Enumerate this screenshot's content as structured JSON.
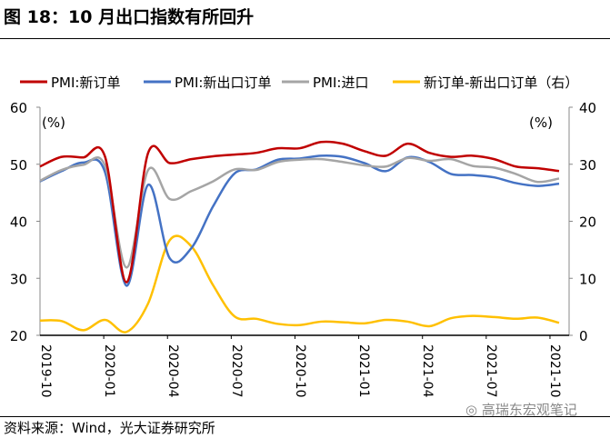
{
  "title": "图 18：10 月出口指数有所回升",
  "source": "资料来源：Wind，光大证券研究所",
  "watermark": "高瑞东宏观笔记",
  "chart_data": {
    "type": "line",
    "categories": [
      "2019-10",
      "2019-11",
      "2019-12",
      "2020-01",
      "2020-02",
      "2020-03",
      "2020-04",
      "2020-05",
      "2020-06",
      "2020-07",
      "2020-08",
      "2020-09",
      "2020-10",
      "2020-11",
      "2020-12",
      "2021-01",
      "2021-02",
      "2021-03",
      "2021-04",
      "2021-05",
      "2021-06",
      "2021-07",
      "2021-08",
      "2021-09",
      "2021-10"
    ],
    "tick_labels": [
      "2019-10",
      "2020-01",
      "2020-04",
      "2020-07",
      "2020-10",
      "2021-01",
      "2021-04",
      "2021-07",
      "2021-10"
    ],
    "left_axis": {
      "label": "(%)",
      "ylim": [
        20,
        60
      ],
      "ticks": [
        20,
        30,
        40,
        50,
        60
      ]
    },
    "right_axis": {
      "label": "(%)",
      "ylim": [
        0,
        40
      ],
      "ticks": [
        0,
        10,
        20,
        30,
        40
      ]
    },
    "grid": false,
    "legend": "top",
    "series": [
      {
        "name": "PMI:新订单",
        "axis": "left",
        "color": "#C00000",
        "values": [
          49.6,
          51.3,
          51.2,
          51.4,
          29.3,
          52.0,
          50.2,
          50.9,
          51.4,
          51.7,
          52.0,
          52.8,
          52.8,
          53.9,
          53.6,
          52.3,
          51.5,
          53.6,
          52.0,
          51.3,
          51.5,
          50.9,
          49.6,
          49.3,
          48.8
        ]
      },
      {
        "name": "PMI:新出口订单",
        "axis": "left",
        "color": "#4472C4",
        "values": [
          47.0,
          48.8,
          50.3,
          48.7,
          28.7,
          46.4,
          33.5,
          35.3,
          42.6,
          48.4,
          49.1,
          50.8,
          51.0,
          51.5,
          51.3,
          50.2,
          48.8,
          51.2,
          50.4,
          48.3,
          48.1,
          47.7,
          46.7,
          46.2,
          46.6
        ]
      },
      {
        "name": "PMI:进口",
        "axis": "left",
        "color": "#A5A5A5",
        "values": [
          47.1,
          49.0,
          49.9,
          49.8,
          31.9,
          49.0,
          43.9,
          45.3,
          47.0,
          49.1,
          49.0,
          50.4,
          50.8,
          50.9,
          50.4,
          49.8,
          49.6,
          51.1,
          50.6,
          50.9,
          49.7,
          49.4,
          48.3,
          46.9,
          47.5
        ]
      },
      {
        "name": "新订单-新出口订单（右）",
        "axis": "right",
        "color": "#FFC000",
        "values": [
          2.6,
          2.5,
          0.9,
          2.7,
          0.6,
          5.6,
          16.7,
          15.6,
          8.8,
          3.3,
          2.9,
          2.0,
          1.8,
          2.4,
          2.3,
          2.1,
          2.7,
          2.4,
          1.6,
          3.0,
          3.4,
          3.2,
          2.9,
          3.1,
          2.2
        ]
      }
    ]
  }
}
